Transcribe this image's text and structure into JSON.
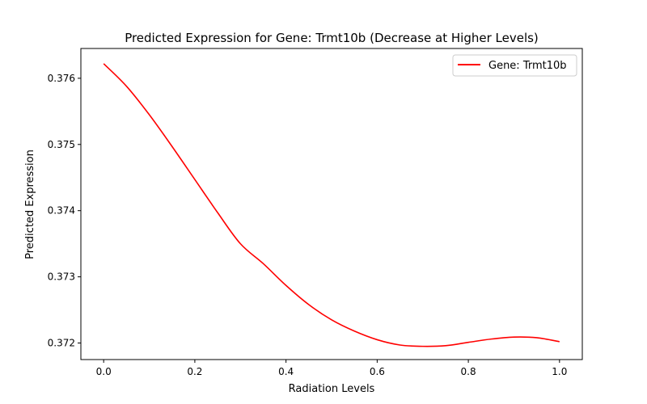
{
  "chart_data": {
    "type": "line",
    "title": "Predicted Expression for Gene: Trmt10b (Decrease at Higher Levels)",
    "xlabel": "Radiation Levels",
    "ylabel": "Predicted Expression",
    "xlim": [
      -0.05,
      1.05
    ],
    "ylim": [
      0.37175,
      0.37645
    ],
    "xticks": [
      0.0,
      0.2,
      0.4,
      0.6,
      0.8,
      1.0
    ],
    "xtick_labels": [
      "0.0",
      "0.2",
      "0.4",
      "0.6",
      "0.8",
      "1.0"
    ],
    "yticks": [
      0.372,
      0.373,
      0.374,
      0.375,
      0.376
    ],
    "ytick_labels": [
      "0.372",
      "0.373",
      "0.374",
      "0.375",
      "0.376"
    ],
    "grid": false,
    "legend_position": "top-right",
    "series": [
      {
        "name": "Gene: Trmt10b",
        "color": "#ff0000",
        "x": [
          0.0,
          0.05,
          0.1,
          0.15,
          0.2,
          0.25,
          0.3,
          0.35,
          0.4,
          0.45,
          0.5,
          0.55,
          0.6,
          0.65,
          0.7,
          0.75,
          0.8,
          0.85,
          0.9,
          0.95,
          1.0
        ],
        "y": [
          0.37622,
          0.37588,
          0.37545,
          0.37497,
          0.37447,
          0.37397,
          0.3735,
          0.3732,
          0.37287,
          0.37258,
          0.37235,
          0.37218,
          0.37205,
          0.37197,
          0.37195,
          0.37196,
          0.37201,
          0.37206,
          0.37209,
          0.37208,
          0.37202
        ]
      }
    ]
  }
}
